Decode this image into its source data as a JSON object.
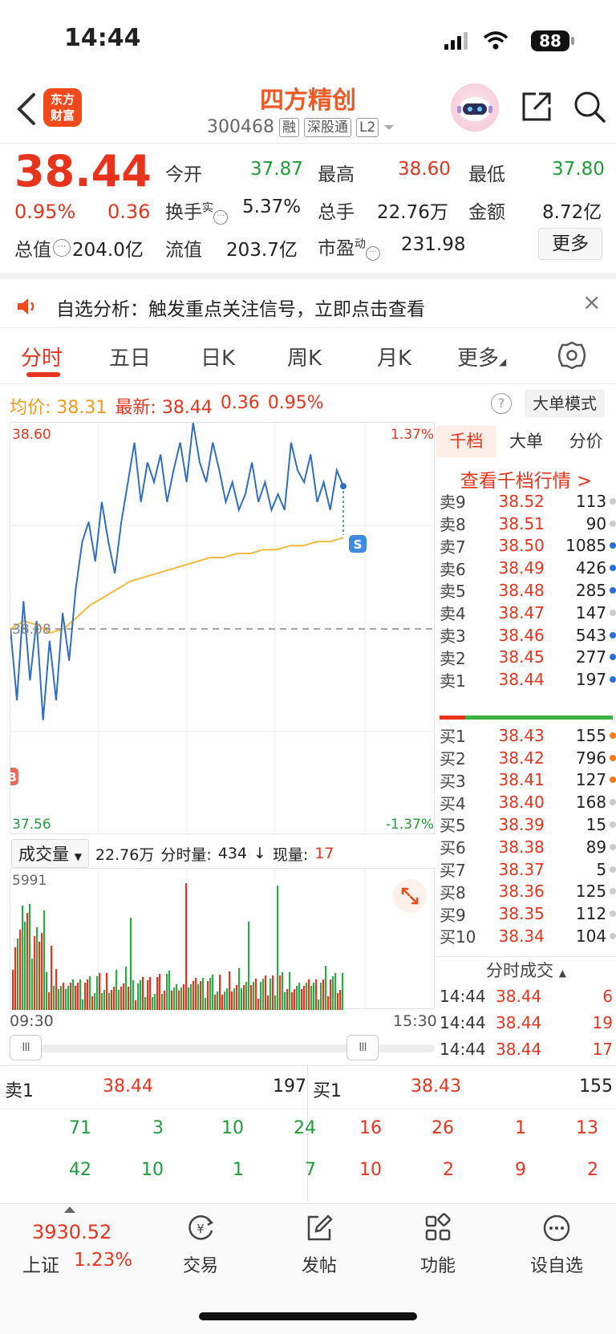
{
  "status": {
    "time": "14:44",
    "battery": "88"
  },
  "header": {
    "logo_line1": "东方",
    "logo_line2": "财富",
    "stock_name": "四方精创",
    "stock_code": "300468",
    "tags": [
      "融",
      "深股通",
      "L2"
    ]
  },
  "quote": {
    "price": "38.44",
    "pct": "0.95%",
    "change": "0.36",
    "open_label": "今开",
    "open": "37.87",
    "high_label": "最高",
    "high": "38.60",
    "low_label": "最低",
    "low": "37.80",
    "turnover_label": "换手",
    "turnover_sup": "实",
    "turnover": "5.37%",
    "volume_label": "总手",
    "volume": "22.76万",
    "amount_label": "金额",
    "amount": "8.72亿",
    "total_value_label": "总值",
    "total_value": "204.0亿",
    "float_value_label": "流值",
    "float_value": "203.7亿",
    "pe_label": "市盈",
    "pe_sup": "动",
    "pe": "231.98",
    "more_label": "更多"
  },
  "notice": {
    "text": "自选分析：触发重点关注信号，立即点击查看",
    "close": "×"
  },
  "tabs": [
    "分时",
    "五日",
    "日K",
    "周K",
    "月K",
    "更多"
  ],
  "price_line": {
    "avg_label": "均价:",
    "avg": "38.31",
    "latest_label": "最新:",
    "latest": "38.44",
    "change": "0.36",
    "pct": "0.95%",
    "help": "?",
    "big_order_mode": "大单模式"
  },
  "chart_data": {
    "type": "line",
    "y_top": "38.60",
    "y_bottom": "37.56",
    "pct_top": "1.37%",
    "pct_bottom": "-1.37%",
    "baseline_label": "38.08",
    "marker_s": "S",
    "marker_b": "B",
    "ylim": [
      37.56,
      38.6
    ],
    "price_series": [
      38.08,
      37.9,
      38.15,
      37.95,
      38.1,
      37.85,
      38.05,
      37.9,
      38.12,
      38.0,
      38.18,
      38.3,
      38.35,
      38.25,
      38.4,
      38.3,
      38.22,
      38.35,
      38.45,
      38.55,
      38.4,
      38.5,
      38.45,
      38.52,
      38.4,
      38.48,
      38.55,
      38.45,
      38.6,
      38.5,
      38.45,
      38.55,
      38.48,
      38.4,
      38.45,
      38.38,
      38.42,
      38.5,
      38.4,
      38.45,
      38.38,
      38.42,
      38.38,
      38.55,
      38.48,
      38.45,
      38.52,
      38.4,
      38.45,
      38.38,
      38.48,
      38.44
    ],
    "avg_series": [
      38.08,
      38.1,
      38.09,
      38.07,
      38.08,
      38.11,
      38.14,
      38.16,
      38.18,
      38.2,
      38.21,
      38.22,
      38.23,
      38.24,
      38.25,
      38.26,
      38.26,
      38.27,
      38.27,
      38.28,
      38.28,
      38.29,
      38.29,
      38.3,
      38.3,
      38.31
    ]
  },
  "volume": {
    "select_label": "成交量",
    "total": "22.76万",
    "minute_label": "分时量:",
    "minute": "434",
    "arrow": "↓",
    "current_label": "现量:",
    "current": "17",
    "max_label": "5991",
    "time_start": "09:30",
    "time_end": "15:30",
    "handle": "III"
  },
  "order_book": {
    "tabs": [
      "千档",
      "大单",
      "分价"
    ],
    "link": "查看千档行情 >",
    "asks": [
      {
        "label": "卖9",
        "price": "38.52",
        "vol": "113",
        "dot": "#cccccc"
      },
      {
        "label": "卖8",
        "price": "38.51",
        "vol": "90",
        "dot": "#cccccc"
      },
      {
        "label": "卖7",
        "price": "38.50",
        "vol": "1085",
        "dot": "#2c6fd6"
      },
      {
        "label": "卖6",
        "price": "38.49",
        "vol": "426",
        "dot": "#2c6fd6"
      },
      {
        "label": "卖5",
        "price": "38.48",
        "vol": "285",
        "dot": "#2c6fd6"
      },
      {
        "label": "卖4",
        "price": "38.47",
        "vol": "147",
        "dot": "#cccccc"
      },
      {
        "label": "卖3",
        "price": "38.46",
        "vol": "543",
        "dot": "#2c6fd6"
      },
      {
        "label": "卖2",
        "price": "38.45",
        "vol": "277",
        "dot": "#2c6fd6"
      },
      {
        "label": "卖1",
        "price": "38.44",
        "vol": "197",
        "dot": "#2c6fd6"
      }
    ],
    "bids": [
      {
        "label": "买1",
        "price": "38.43",
        "vol": "155",
        "dot": "#f07a1c"
      },
      {
        "label": "买2",
        "price": "38.42",
        "vol": "796",
        "dot": "#f07a1c"
      },
      {
        "label": "买3",
        "price": "38.41",
        "vol": "127",
        "dot": "#f07a1c"
      },
      {
        "label": "买4",
        "price": "38.40",
        "vol": "168",
        "dot": "#cccccc"
      },
      {
        "label": "买5",
        "price": "38.39",
        "vol": "15",
        "dot": "#cccccc"
      },
      {
        "label": "买6",
        "price": "38.38",
        "vol": "89",
        "dot": "#cccccc"
      },
      {
        "label": "买7",
        "price": "38.37",
        "vol": "5",
        "dot": "#cccccc"
      },
      {
        "label": "买8",
        "price": "38.36",
        "vol": "125",
        "dot": "#cccccc"
      },
      {
        "label": "买9",
        "price": "38.35",
        "vol": "112",
        "dot": "#cccccc"
      },
      {
        "label": "买10",
        "price": "38.34",
        "vol": "104",
        "dot": "#cccccc"
      }
    ],
    "ticks_title": "分时成交",
    "ticks": [
      {
        "time": "14:44",
        "price": "38.44",
        "vol": "6"
      },
      {
        "time": "14:44",
        "price": "38.44",
        "vol": "19"
      },
      {
        "time": "14:44",
        "price": "38.44",
        "vol": "17"
      }
    ]
  },
  "bottom_quote": {
    "sell_label": "卖1",
    "sell_price": "38.44",
    "sell_vol": "197",
    "buy_label": "买1",
    "buy_price": "38.43",
    "buy_vol": "155",
    "sell_queue_row1": [
      "71",
      "3",
      "10",
      "24"
    ],
    "sell_queue_row2": [
      "42",
      "10",
      "1",
      "7"
    ],
    "buy_queue_row1": [
      "16",
      "26",
      "1",
      "13"
    ],
    "buy_queue_row2": [
      "10",
      "2",
      "9",
      "2"
    ]
  },
  "bottom_nav": {
    "index_value": "3930.52",
    "index_name": "上证",
    "index_pct": "1.23%",
    "items": [
      "交易",
      "发帖",
      "功能",
      "设自选"
    ]
  }
}
